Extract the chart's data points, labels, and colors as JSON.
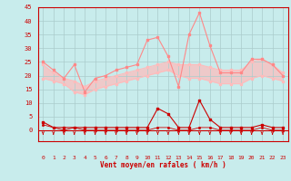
{
  "x": [
    0,
    1,
    2,
    3,
    4,
    5,
    6,
    7,
    8,
    9,
    10,
    11,
    12,
    13,
    14,
    15,
    16,
    17,
    18,
    19,
    20,
    21,
    22,
    23
  ],
  "series_rafales": [
    25,
    22,
    19,
    24,
    14,
    19,
    20,
    22,
    23,
    24,
    33,
    34,
    27,
    16,
    35,
    43,
    31,
    21,
    21,
    21,
    26,
    26,
    24,
    20
  ],
  "series_mean_high": [
    24,
    21,
    19,
    18,
    16,
    18,
    19,
    20,
    21,
    22,
    23,
    24,
    25,
    24,
    24,
    24,
    23,
    22,
    22,
    22,
    25,
    26,
    24,
    21
  ],
  "series_mean_low": [
    19,
    18,
    17,
    14,
    13,
    15,
    16,
    17,
    18,
    19,
    20,
    21,
    22,
    20,
    19,
    19,
    18,
    17,
    17,
    17,
    19,
    20,
    19,
    18
  ],
  "series_wind": [
    3,
    1,
    1,
    1,
    1,
    1,
    1,
    1,
    1,
    1,
    1,
    8,
    6,
    1,
    1,
    11,
    4,
    1,
    1,
    1,
    1,
    2,
    1,
    1
  ],
  "series_wind2": [
    2,
    1,
    0,
    1,
    0,
    0,
    0,
    0,
    0,
    0,
    0,
    1,
    1,
    0,
    0,
    1,
    1,
    0,
    0,
    0,
    0,
    1,
    0,
    0
  ],
  "color_rafales": "#ff8888",
  "color_mean": "#ffbbbb",
  "color_wind": "#cc0000",
  "color_wind2": "#cc0000",
  "bg_color": "#c8ecec",
  "grid_color": "#aacccc",
  "xlabel": "Vent moyen/en rafales ( km/h )",
  "ylim": [
    -4,
    45
  ],
  "xlim": [
    -0.5,
    23.5
  ],
  "yticks": [
    0,
    5,
    10,
    15,
    20,
    25,
    30,
    35,
    40,
    45
  ],
  "xticks": [
    0,
    1,
    2,
    3,
    4,
    5,
    6,
    7,
    8,
    9,
    10,
    11,
    12,
    13,
    14,
    15,
    16,
    17,
    18,
    19,
    20,
    21,
    22,
    23
  ]
}
